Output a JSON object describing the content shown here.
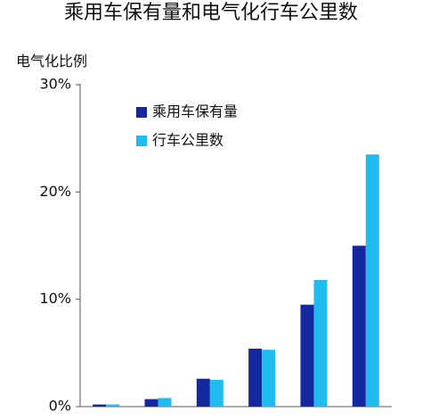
{
  "chart_data": {
    "type": "bar",
    "title": "乘用车保有量和电气化行车公里数",
    "ylabel": "电气化比例",
    "ylim": [
      0,
      30
    ],
    "yticks": [
      "0%",
      "10%",
      "20%",
      "30%"
    ],
    "ytick_values": [
      0,
      10,
      20,
      30
    ],
    "categories": [
      "",
      "",
      "",
      "",
      "",
      ""
    ],
    "series": [
      {
        "name": "乘用车保有量",
        "color": "#1428a0",
        "values": [
          0.2,
          0.7,
          2.6,
          5.4,
          9.5,
          15.0
        ]
      },
      {
        "name": "行车公里数",
        "color": "#21bcef",
        "values": [
          0.2,
          0.8,
          2.5,
          5.3,
          11.8,
          23.5
        ]
      }
    ],
    "legend_position": "top-left inside plot",
    "grid": false
  }
}
